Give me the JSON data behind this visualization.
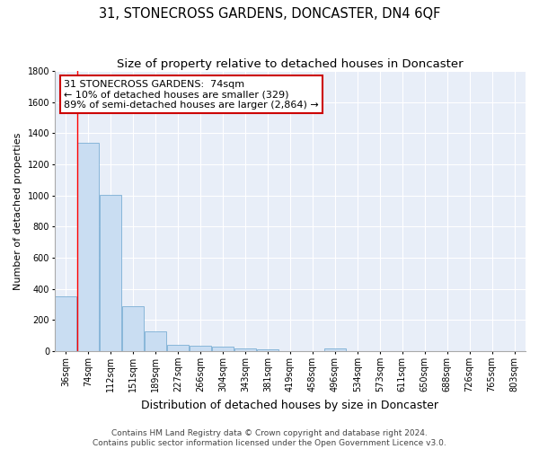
{
  "title": "31, STONECROSS GARDENS, DONCASTER, DN4 6QF",
  "subtitle": "Size of property relative to detached houses in Doncaster",
  "xlabel": "Distribution of detached houses by size in Doncaster",
  "ylabel": "Number of detached properties",
  "categories": [
    "36sqm",
    "74sqm",
    "112sqm",
    "151sqm",
    "189sqm",
    "227sqm",
    "266sqm",
    "304sqm",
    "343sqm",
    "381sqm",
    "419sqm",
    "458sqm",
    "496sqm",
    "534sqm",
    "573sqm",
    "611sqm",
    "650sqm",
    "688sqm",
    "726sqm",
    "765sqm",
    "803sqm"
  ],
  "values": [
    355,
    1340,
    1005,
    290,
    130,
    40,
    35,
    30,
    20,
    15,
    0,
    0,
    20,
    0,
    0,
    0,
    0,
    0,
    0,
    0,
    0
  ],
  "bar_color": "#c9ddf2",
  "bar_edge_color": "#7bafd4",
  "red_line_x": 0.5,
  "annotation_text": "31 STONECROSS GARDENS:  74sqm\n← 10% of detached houses are smaller (329)\n89% of semi-detached houses are larger (2,864) →",
  "annotation_box_facecolor": "#ffffff",
  "annotation_box_edgecolor": "#cc0000",
  "ylim": [
    0,
    1800
  ],
  "yticks": [
    0,
    200,
    400,
    600,
    800,
    1000,
    1200,
    1400,
    1600,
    1800
  ],
  "background_color": "#e8eef8",
  "grid_color": "#ffffff",
  "footer_line1": "Contains HM Land Registry data © Crown copyright and database right 2024.",
  "footer_line2": "Contains public sector information licensed under the Open Government Licence v3.0.",
  "title_fontsize": 10.5,
  "subtitle_fontsize": 9.5,
  "xlabel_fontsize": 9,
  "ylabel_fontsize": 8,
  "tick_fontsize": 7,
  "annotation_fontsize": 8,
  "footer_fontsize": 6.5
}
